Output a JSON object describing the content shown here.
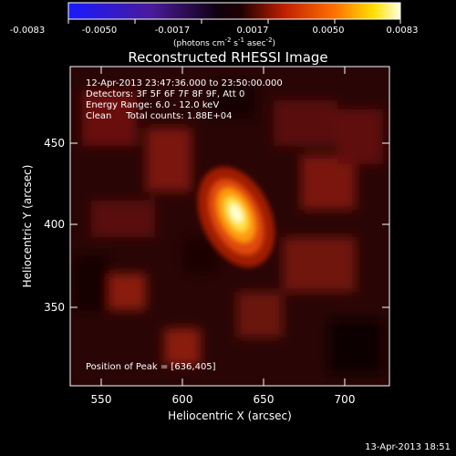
{
  "colorbar": {
    "ticks": [
      "-0.0083",
      "-0.0050",
      "-0.0017",
      "0.0017",
      "0.0050",
      "0.0083"
    ],
    "units": "(photons cm",
    "units_sup1": "-2",
    "units_mid": " s",
    "units_sup2": "-1",
    "units_mid2": " asec",
    "units_sup3": "-2",
    "units_end": ")"
  },
  "title": "Reconstructed RHESSI Image",
  "info": {
    "line1": "12-Apr-2013 23:47:36.000 to 23:50:00.000",
    "line2": "Detectors: 3F 5F 6F 7F 8F 9F, Att 0",
    "line3": "Energy Range: 6.0 - 12.0 keV",
    "line4": "Clean     Total counts: 1.88E+04"
  },
  "peak_label": "Position of Peak = [636,405]",
  "axes": {
    "xlabel": "Heliocentric X (arcsec)",
    "ylabel": "Heliocentric Y (arcsec)",
    "xticks": [
      "550",
      "600",
      "650",
      "700"
    ],
    "yticks": [
      "450",
      "400",
      "350"
    ]
  },
  "timestamp": "13-Apr-2013 18:51",
  "colors": {
    "cmap_low": "#0000ff",
    "cmap_mid": "#000000",
    "cmap_high": "#ffffff"
  }
}
